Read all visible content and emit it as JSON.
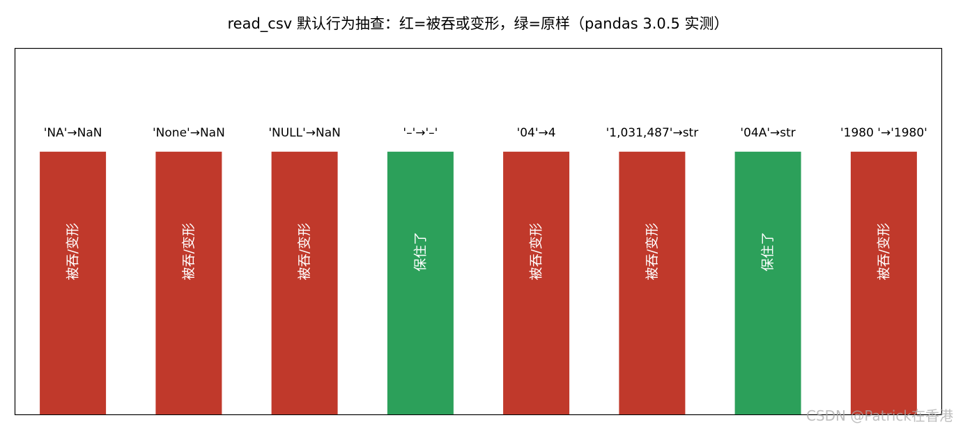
{
  "chart_data": {
    "type": "bar",
    "title": "read_csv 默认行为抽查：红=被吞或变形，绿=原样（pandas 3.0.5 实测）",
    "categories": [
      "'NA'→NaN",
      "'None'→NaN",
      "'NULL'→NaN",
      "'–'→'–'",
      "'04'→4",
      "'1,031,487'→str",
      "'04A'→str",
      "'1980 '→'1980'"
    ],
    "values": [
      1,
      1,
      1,
      1,
      1,
      1,
      1,
      1
    ],
    "results": [
      "被吞/变形",
      "被吞/变形",
      "被吞/变形",
      "保住了",
      "被吞/变形",
      "被吞/变形",
      "保住了",
      "被吞/变形"
    ],
    "status": [
      "bad",
      "bad",
      "bad",
      "good",
      "bad",
      "bad",
      "good",
      "bad"
    ],
    "colors": {
      "bad": "#c0392b",
      "good": "#2ca05a"
    },
    "ylim": [
      0,
      1.25
    ],
    "grid": false,
    "legend": "none",
    "xlabel": "",
    "ylabel": ""
  },
  "watermark": "CSDN @Patrick在香港"
}
